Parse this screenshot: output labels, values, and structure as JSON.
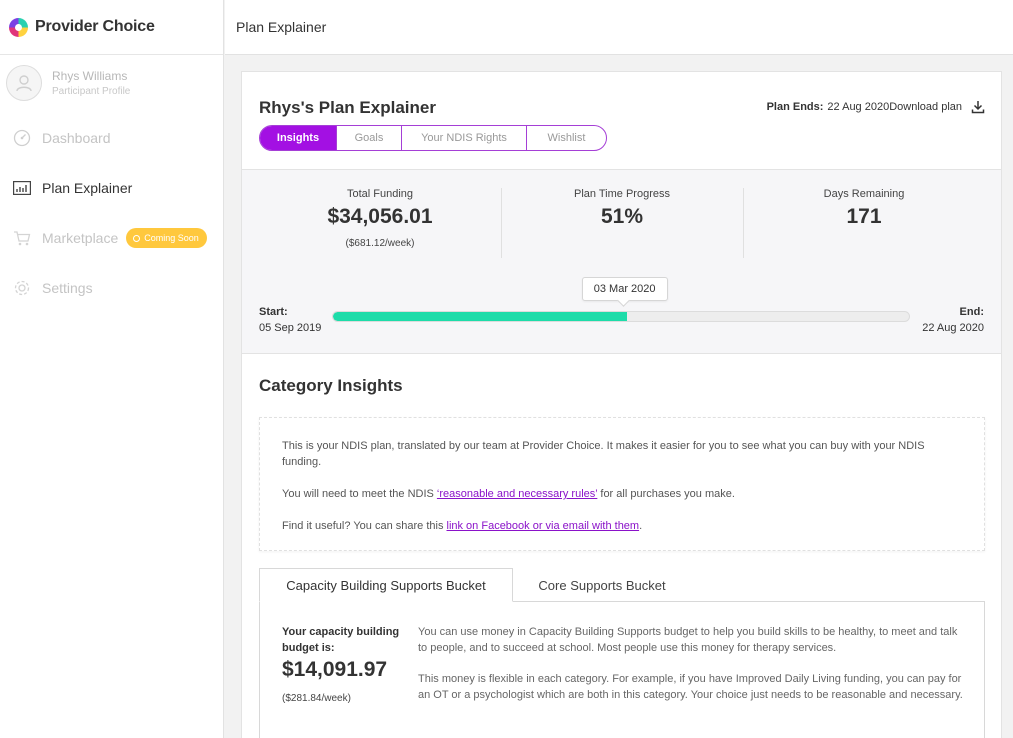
{
  "app": {
    "name": "Provider Choice"
  },
  "topbar": {
    "title": "Plan Explainer"
  },
  "profile": {
    "name": "Rhys Williams",
    "subtitle": "Participant Profile"
  },
  "nav": [
    {
      "label": "Dashboard",
      "icon": "dashboard-icon",
      "active": false
    },
    {
      "label": "Plan Explainer",
      "icon": "chart-icon",
      "active": true
    },
    {
      "label": "Marketplace",
      "icon": "cart-icon",
      "active": false,
      "badge": "Coming Soon"
    },
    {
      "label": "Settings",
      "icon": "gear-icon",
      "active": false
    }
  ],
  "plan": {
    "title": "Rhys's Plan Explainer",
    "ends_label": "Plan Ends:",
    "ends_value": "22 Aug 2020",
    "download_label": "Download plan",
    "tabs": [
      "Insights",
      "Goals",
      "Your NDIS Rights",
      "Wishlist"
    ],
    "active_tab": "Insights"
  },
  "stats": {
    "total_funding": {
      "label": "Total Funding",
      "value": "$34,056.01",
      "sub": "($681.12/week)"
    },
    "time_progress": {
      "label": "Plan Time Progress",
      "value": "51%"
    },
    "days_remaining": {
      "label": "Days Remaining",
      "value": "171"
    }
  },
  "timeline": {
    "start_label": "Start:",
    "start_date": "05 Sep 2019",
    "end_label": "End:",
    "end_date": "22 Aug 2020",
    "today": "03 Mar 2020",
    "progress": 0.51
  },
  "category_insights": {
    "title": "Category Insights",
    "p1": "This is your NDIS plan, translated by our team at Provider Choice. It makes it easier for you to see what you can buy with your NDIS funding.",
    "p2_pre": "You will need to meet the NDIS ",
    "p2_link": "‘reasonable and necessary rules’",
    "p2_post": " for all purchases you make.",
    "p3_pre": "Find it useful? You can share this ",
    "p3_link": "link on Facebook or via email with them",
    "p3_post": "."
  },
  "buckets": {
    "tabs": [
      "Capacity Building Supports Bucket",
      "Core Supports Bucket"
    ],
    "active": "Capacity Building Supports Bucket",
    "budget_label": "Your capacity building budget is:",
    "budget_value": "$14,091.97",
    "budget_sub": "($281.84/week)",
    "desc1": "You can use money in Capacity Building Supports budget to help you build skills to be healthy, to meet and talk to people, and to succeed at school. Most people use this money for therapy services.",
    "desc2": "This money is flexible in each category. For example, if you have Improved Daily Living funding, you can pay for an OT or a psychologist which are both in this category. Your choice just needs to be reasonable and necessary."
  },
  "colors": {
    "accent": "#a310e3",
    "progress": "#1ddca9",
    "badge": "#ffc83d"
  }
}
